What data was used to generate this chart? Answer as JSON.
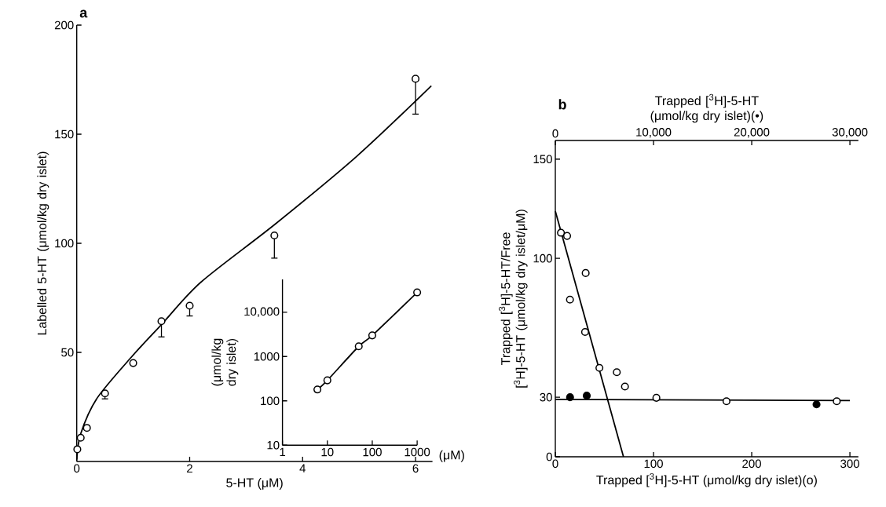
{
  "chart_data": [
    {
      "type": "scatter",
      "title": "a",
      "xlabel": "5-HT (μM)",
      "ylabel": "Labelled 5-HT (μmol/kg dry islet)",
      "xlim": [
        0,
        6.3
      ],
      "ylim": [
        0,
        200
      ],
      "xticks": [
        0,
        2,
        4,
        6
      ],
      "yticks": [
        50,
        100,
        150,
        200
      ],
      "marker": "circle",
      "series": [
        {
          "type": "scatter",
          "color": "#000000",
          "x": [
            0.01,
            0.07,
            0.18,
            0.5,
            1,
            1.5,
            2,
            3.5,
            6
          ],
          "values": [
            5.6,
            10.9,
            15.4,
            31.2,
            45.1,
            64.3,
            71.4,
            103.6,
            175.4
          ],
          "errors": [
            null,
            null,
            null,
            [
              28.7,
              31.2
            ],
            null,
            [
              57.1,
              64.3
            ],
            [
              66.7,
              71.4
            ],
            [
              93.2,
              103.6
            ],
            [
              159.2,
              175.4
            ]
          ]
        },
        {
          "type": "line",
          "marker": "none",
          "color": "#000000",
          "x": [
            0,
            0.07,
            0.36,
            0.98,
            1.51,
            2.2,
            3.52,
            4.96,
            6.28
          ],
          "values": [
            0.9,
            12.7,
            29,
            48.2,
            63,
            82.2,
            108.9,
            139.9,
            172.2
          ]
        }
      ]
    },
    {
      "type": "line",
      "ylabel": "(μmol/kg dry islet)",
      "xlabel": "(μM)",
      "log": "xy",
      "xlim": [
        1,
        1000
      ],
      "ylim": [
        10,
        55000
      ],
      "xticks": [
        1,
        10,
        100,
        1000
      ],
      "yticks": [
        10,
        100,
        1000,
        {
          "value": 10000,
          "label": "10,000"
        }
      ],
      "marker": "circle",
      "series": [
        {
          "color": "#000000",
          "x": [
            6,
            10,
            50,
            100,
            1000
          ],
          "values": [
            180,
            290,
            1700,
            3000,
            28000
          ]
        }
      ]
    },
    {
      "type": "scatter",
      "title": "b",
      "xlabel": "Trapped [$^{3}$H]-5-HT (μmol/kg dry islet)(o)",
      "x2label": "Trapped [$^{3}$H]-5-HT (μmol/kg dry islet)(•)",
      "ylabel": "Trapped [$^{3}$H]-5-HT/Free [$^{3}$H]-5-HT (μmol/kg dry islet/μM)",
      "xlim": [
        0,
        308.6
      ],
      "x2lim": [
        0,
        30860
      ],
      "ylim": [
        0,
        159.4
      ],
      "xticks": [
        0,
        100,
        200,
        300
      ],
      "x2ticks": [
        0,
        {
          "value": 10000,
          "label": "10,000"
        },
        {
          "value": 20000,
          "label": "20,000"
        },
        {
          "value": 30000,
          "label": "30,000"
        }
      ],
      "yticks": [
        0,
        30,
        100,
        150
      ],
      "marker": "circle",
      "series": [
        {
          "type": "scatter",
          "color": "#000000",
          "x": [
            5.7,
            12,
            30.9,
            14.9,
            30.3,
            44.9,
            62.6,
            70.9,
            102.9,
            174.3,
            286.6
          ],
          "values": [
            112.9,
            111.3,
            92.6,
            79.2,
            62.9,
            44.8,
            42.6,
            35.4,
            29.7,
            28.0,
            28.0
          ]
        },
        {
          "type": "scatter",
          "axis": "x2",
          "color": "#000000",
          "x": [
            1500,
            3200,
            26600
          ],
          "values": [
            30.0,
            30.8,
            26.4
          ]
        },
        {
          "type": "line",
          "marker": "none",
          "color": "#000000",
          "x": [
            0,
            69.4
          ],
          "values": [
            123.8,
            0
          ]
        },
        {
          "type": "line",
          "marker": "none",
          "color": "#000000",
          "x": [
            0,
            300
          ],
          "values": [
            28.9,
            28.3
          ]
        }
      ]
    }
  ]
}
